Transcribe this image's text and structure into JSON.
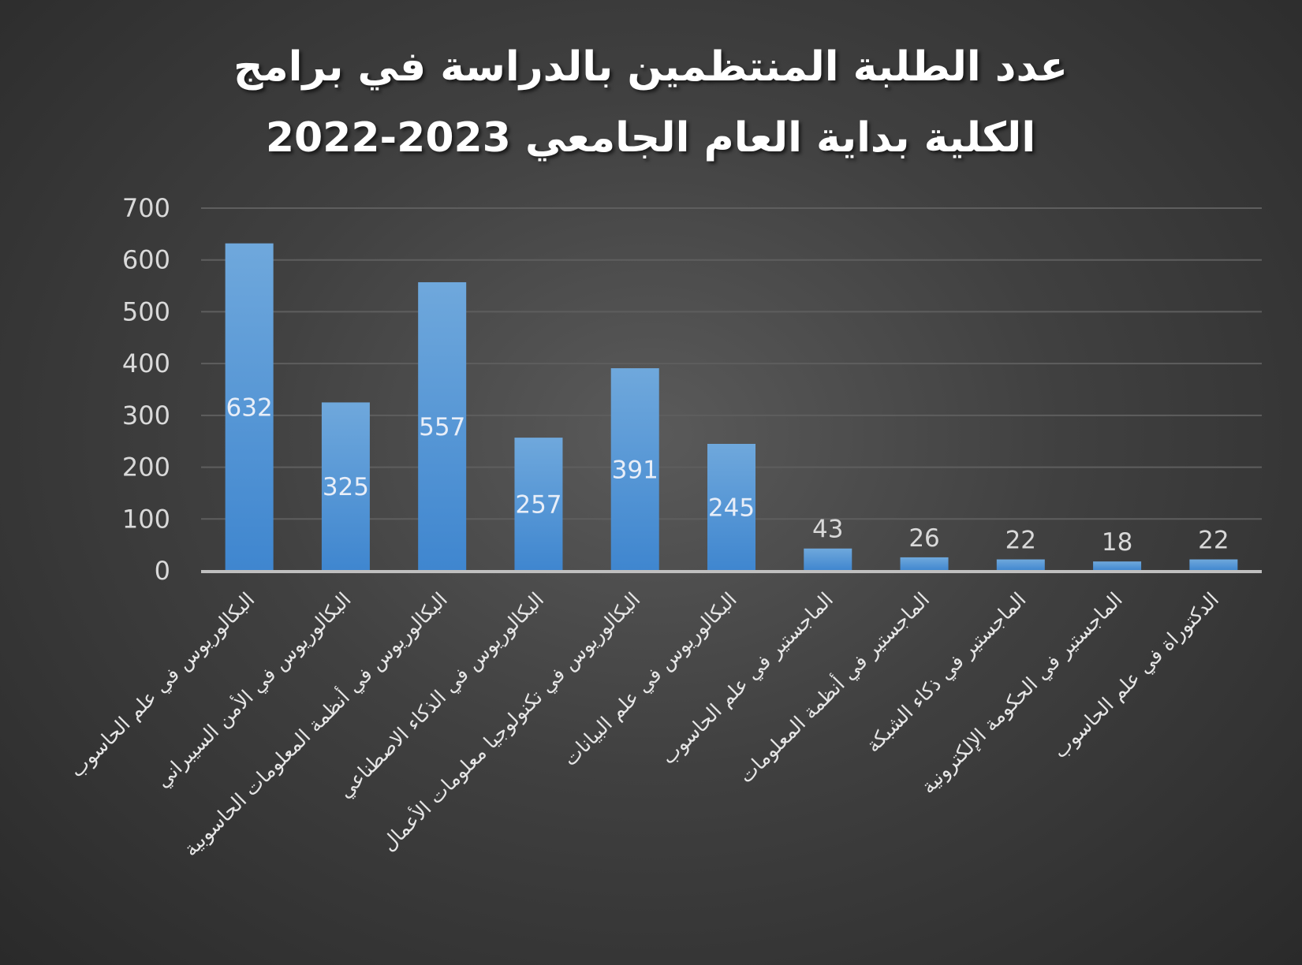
{
  "chart_data": {
    "type": "bar",
    "title_line1": "عدد الطلبة المنتظمين بالدراسة في برامج",
    "title_line2": "الكلية بداية العام الجامعي 2023-2022",
    "categories": [
      "البكالوريوس في علم الحاسوب",
      "البكالوريوس في الأمن السيبراني",
      "البكالوريوس في أنظمة المعلومات الحاسوبية",
      "البكالوريوس في الذكاء الاصطناعي",
      "البكالوريوس في تكنولوجيا معلومات الأعمال",
      "البكالوريوس في علم البيانات",
      "الماجستير في علم الحاسوب",
      "الماجستير في أنظمة المعلومات",
      "الماجستير في ذكاء الشبكة",
      "الماجستير في الحكومة الإلكترونية",
      "الدكتوراة في علم الحاسوب"
    ],
    "values": [
      632,
      325,
      557,
      257,
      391,
      245,
      43,
      26,
      22,
      18,
      22
    ],
    "ylim": [
      0,
      700
    ],
    "yticks": [
      "0",
      "100",
      "200",
      "300",
      "400",
      "500",
      "600",
      "700"
    ],
    "xlabel": "",
    "ylabel": "",
    "grid": true,
    "legend": "none",
    "colors": {
      "bar_top": "#6fa8dc",
      "bar_bottom": "#3f86cf",
      "gridline": "#5e5e5e",
      "axis": "#bfbfbf"
    }
  }
}
